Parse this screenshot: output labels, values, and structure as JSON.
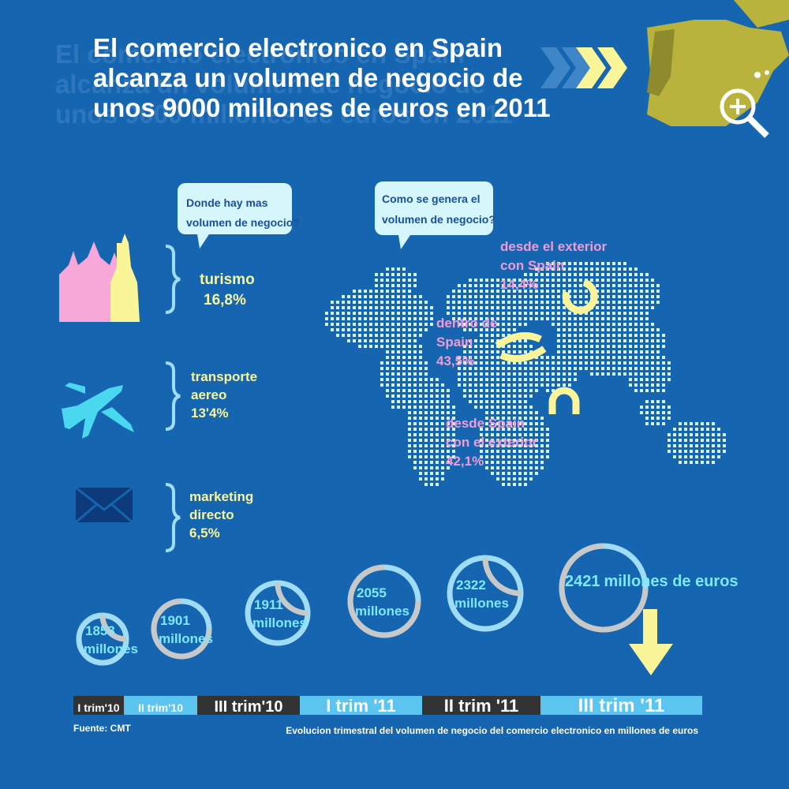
{
  "title": {
    "lines": [
      "El comercio electronico en Spain",
      "alcanza un volumen de negocio de",
      "unos 9000 millones de euros en 2011"
    ]
  },
  "sectors": {
    "question": [
      "Donde hay mas",
      "volumen de negocio?"
    ],
    "items": [
      {
        "label": [
          "turismo"
        ],
        "value": "16,8%"
      },
      {
        "label": [
          "transporte",
          "aereo"
        ],
        "value": "13'4%"
      },
      {
        "label": [
          "marketing",
          "directo"
        ],
        "value": "6,5%"
      }
    ]
  },
  "origin": {
    "question": [
      "Como se genera el",
      "volumen de negocio?"
    ],
    "items": [
      {
        "label": [
          "desde el exterior",
          "con Spain"
        ],
        "value": "14,4%"
      },
      {
        "label": [
          "dentro de",
          "Spain"
        ],
        "value": "43,5%"
      },
      {
        "label": [
          "desde Spain",
          "con el exterior"
        ],
        "value": "42,1%"
      }
    ]
  },
  "quarters": [
    {
      "period": "I trim'10",
      "amount": "1853",
      "unit": "millones"
    },
    {
      "period": "II trim'10",
      "amount": "1901",
      "unit": "millones"
    },
    {
      "period": "III trim'10",
      "amount": "1911",
      "unit": "millones"
    },
    {
      "period": "I trim '11",
      "amount": "2055",
      "unit": "millones"
    },
    {
      "period": "II trim '11",
      "amount": "2322",
      "unit": "millones"
    },
    {
      "period": "III trim '11",
      "amount": "2421",
      "unit": "millones de euros"
    }
  ],
  "footer": {
    "source": "Fuente: CMT",
    "caption": "Evolucion trimestral del volumen de negocio del comercio electronico en millones de euros"
  }
}
